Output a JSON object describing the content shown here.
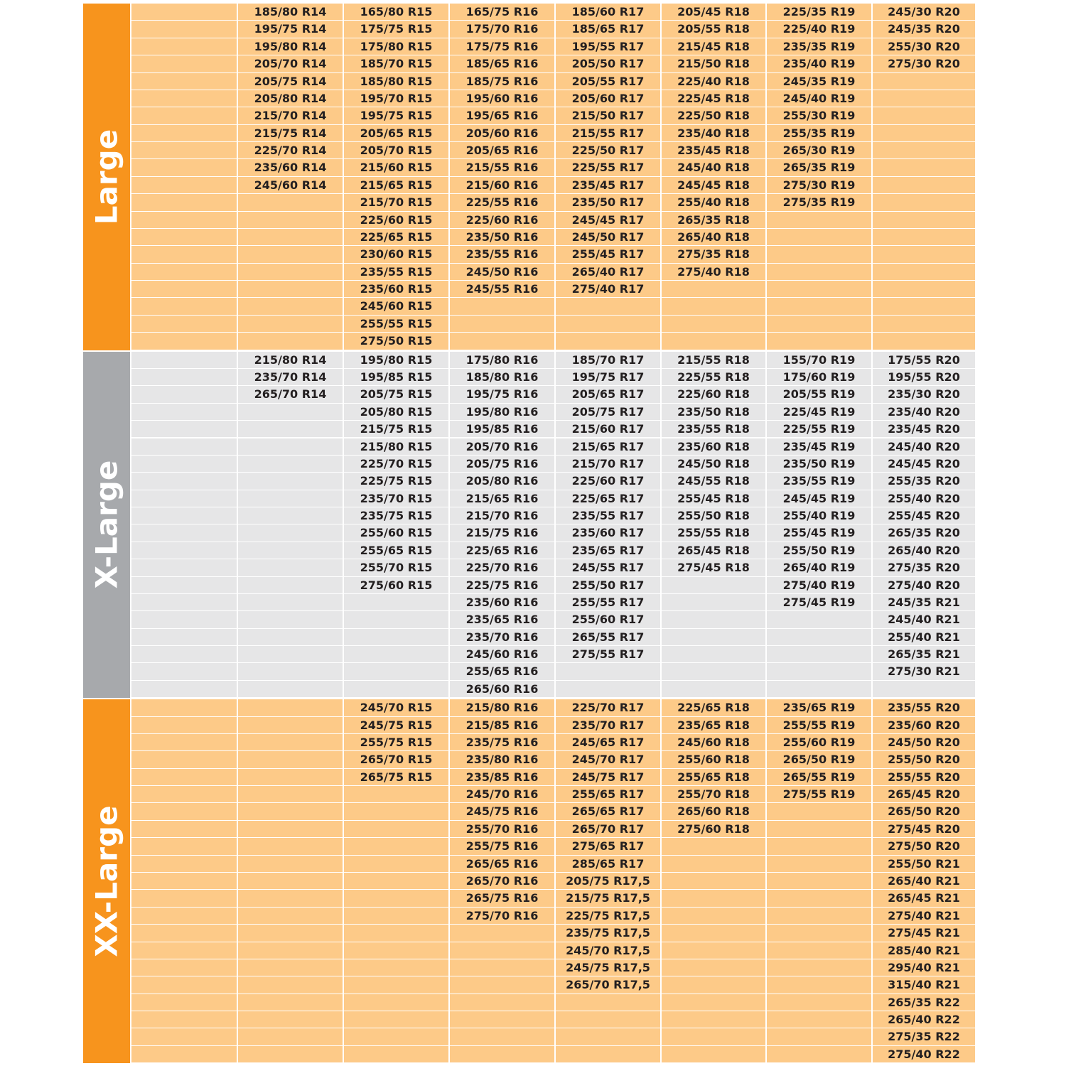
{
  "sections": [
    {
      "label": "Large",
      "columns": [
        [
          "185/80 R14",
          "195/75 R14",
          "195/80 R14",
          "205/70 R14",
          "205/75 R14",
          "205/80 R14",
          "215/70 R14",
          "215/75 R14",
          "225/70 R14",
          "235/60 R14",
          "245/60 R14"
        ],
        [
          "165/80 R15",
          "175/75 R15",
          "175/80 R15",
          "185/70 R15",
          "185/80 R15",
          "195/70 R15",
          "195/75 R15",
          "205/65 R15",
          "205/70 R15",
          "215/60 R15",
          "215/65 R15",
          "215/70 R15",
          "225/60 R15",
          "225/65 R15",
          "230/60 R15",
          "235/55 R15",
          "235/60 R15",
          "245/60 R15",
          "255/55 R15",
          "275/50 R15"
        ],
        [
          "165/75 R16",
          "175/70 R16",
          "175/75 R16",
          "185/65 R16",
          "185/75 R16",
          "195/60 R16",
          "195/65 R16",
          "205/60 R16",
          "205/65 R16",
          "215/55 R16",
          "215/60 R16",
          "225/55 R16",
          "225/60 R16",
          "235/50 R16",
          "235/55 R16",
          "245/50 R16",
          "245/55 R16"
        ],
        [
          "185/60 R17",
          "185/65 R17",
          "195/55 R17",
          "205/50 R17",
          "205/55 R17",
          "205/60 R17",
          "215/50 R17",
          "215/55 R17",
          "225/50 R17",
          "225/55 R17",
          "235/45 R17",
          "235/50 R17",
          "245/45 R17",
          "245/50 R17",
          "255/45 R17",
          "265/40 R17",
          "275/40 R17"
        ],
        [
          "205/45 R18",
          "205/55 R18",
          "215/45 R18",
          "215/50 R18",
          "225/40 R18",
          "225/45 R18",
          "225/50 R18",
          "235/40 R18",
          "235/45 R18",
          "245/40 R18",
          "245/45 R18",
          "255/40 R18",
          "265/35 R18",
          "265/40 R18",
          "275/35 R18",
          "275/40 R18"
        ],
        [
          "225/35 R19",
          "225/40 R19",
          "235/35 R19",
          "235/40 R19",
          "245/35 R19",
          "245/40 R19",
          "255/30 R19",
          "255/35 R19",
          "265/30 R19",
          "265/35 R19",
          "275/30 R19",
          "275/35 R19"
        ],
        [
          "245/30 R20",
          "245/35 R20",
          "255/30 R20",
          "275/30 R20"
        ]
      ]
    },
    {
      "label": "X-Large",
      "columns": [
        [
          "215/80 R14",
          "235/70 R14",
          "265/70 R14"
        ],
        [
          "195/80 R15",
          "195/85 R15",
          "205/75 R15",
          "205/80 R15",
          "215/75 R15",
          "215/80 R15",
          "225/70 R15",
          "225/75 R15",
          "235/70 R15",
          "235/75 R15",
          "255/60 R15",
          "255/65 R15",
          "255/70 R15",
          "275/60 R15"
        ],
        [
          "175/80 R16",
          "185/80 R16",
          "195/75 R16",
          "195/80 R16",
          "195/85 R16",
          "205/70 R16",
          "205/75 R16",
          "205/80 R16",
          "215/65 R16",
          "215/70 R16",
          "215/75 R16",
          "225/65 R16",
          "225/70 R16",
          "225/75 R16",
          "235/60 R16",
          "235/65 R16",
          "235/70 R16",
          "245/60 R16",
          "255/65 R16",
          "265/60 R16"
        ],
        [
          "185/70 R17",
          "195/75 R17",
          "205/65 R17",
          "205/75 R17",
          "215/60 R17",
          "215/65 R17",
          "215/70 R17",
          "225/60 R17",
          "225/65 R17",
          "235/55 R17",
          "235/60 R17",
          "235/65 R17",
          "245/55 R17",
          "255/50 R17",
          "255/55 R17",
          "255/60 R17",
          "265/55 R17",
          "275/55 R17"
        ],
        [
          "215/55 R18",
          "225/55 R18",
          "225/60 R18",
          "235/50 R18",
          "235/55 R18",
          "235/60 R18",
          "245/50 R18",
          "245/55 R18",
          "255/45 R18",
          "255/50 R18",
          "255/55 R18",
          "265/45 R18",
          "275/45 R18"
        ],
        [
          "155/70 R19",
          "175/60 R19",
          "205/55 R19",
          "225/45 R19",
          "225/55 R19",
          "235/45 R19",
          "235/50 R19",
          "235/55 R19",
          "245/45 R19",
          "255/40 R19",
          "255/45 R19",
          "255/50 R19",
          "265/40 R19",
          "275/40 R19",
          "275/45 R19"
        ],
        [
          "175/55 R20",
          "195/55 R20",
          "235/30 R20",
          "235/40 R20",
          "235/45 R20",
          "245/40 R20",
          "245/45 R20",
          "255/35 R20",
          "255/40 R20",
          "255/45 R20",
          "265/35 R20",
          "265/40 R20",
          "275/35 R20",
          "275/40 R20",
          "245/35 R21",
          "245/40 R21",
          "255/40 R21",
          "265/35 R21",
          "275/30 R21"
        ]
      ]
    },
    {
      "label": "XX-Large",
      "columns": [
        [],
        [
          "245/70 R15",
          "245/75 R15",
          "255/75 R15",
          "265/70 R15",
          "265/75 R15"
        ],
        [
          "215/80 R16",
          "215/85 R16",
          "235/75 R16",
          "235/80 R16",
          "235/85 R16",
          "245/70 R16",
          "245/75 R16",
          "255/70 R16",
          "255/75 R16",
          "265/65 R16",
          "265/70 R16",
          "265/75 R16",
          "275/70 R16"
        ],
        [
          "225/70 R17",
          "235/70 R17",
          "245/65 R17",
          "245/70 R17",
          "245/75 R17",
          "255/65 R17",
          "265/65 R17",
          "265/70 R17",
          "275/65 R17",
          "285/65 R17",
          "205/75 R17,5",
          "215/75 R17,5",
          "225/75 R17,5",
          "235/75 R17,5",
          "245/70 R17,5",
          "245/75 R17,5",
          "265/70 R17,5"
        ],
        [
          "225/65 R18",
          "235/65 R18",
          "245/60 R18",
          "255/60 R18",
          "255/65 R18",
          "255/70 R18",
          "265/60 R18",
          "275/60 R18"
        ],
        [
          "235/65 R19",
          "255/55 R19",
          "255/60 R19",
          "265/50 R19",
          "265/55 R19",
          "275/55 R19"
        ],
        [
          "235/55 R20",
          "235/60 R20",
          "245/50 R20",
          "255/50 R20",
          "255/55 R20",
          "265/45 R20",
          "265/50 R20",
          "275/45 R20",
          "275/50 R20",
          "255/50 R21",
          "265/40 R21",
          "265/45 R21",
          "275/40 R21",
          "275/45 R21",
          "285/40 R21",
          "295/40 R21",
          "315/40 R21",
          "265/35 R22",
          "265/40 R22",
          "275/35 R22",
          "275/40 R22"
        ]
      ]
    }
  ]
}
